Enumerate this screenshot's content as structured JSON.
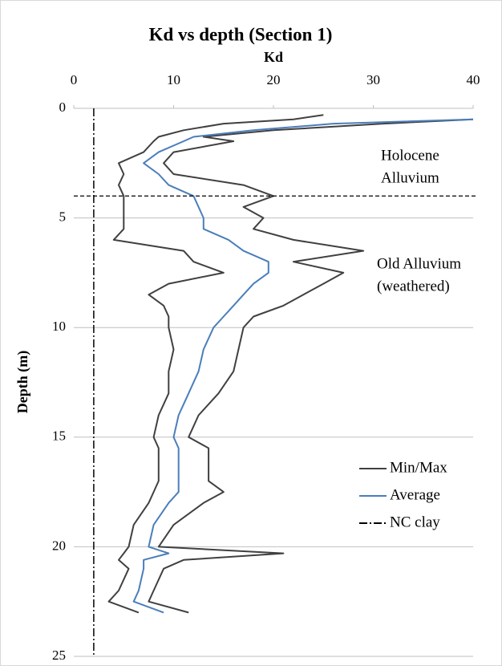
{
  "chart_data": {
    "type": "line",
    "title": "Kd vs depth (Section 1)",
    "x_label": "Kd",
    "y_label": "Depth (m)",
    "xlim": [
      0,
      40
    ],
    "xticks": [
      0,
      10,
      20,
      30,
      40
    ],
    "ylim": [
      0,
      25
    ],
    "yticks": [
      0,
      5,
      10,
      15,
      20,
      25
    ],
    "y_inverted": true,
    "grid": true,
    "legend": "lower right",
    "depth": [
      0.3,
      0.5,
      0.7,
      1,
      1.3,
      1.5,
      2,
      2.5,
      3,
      3.5,
      4,
      4.5,
      5,
      5.5,
      6,
      6.5,
      7,
      7.5,
      8,
      8.5,
      9,
      9.5,
      10,
      11,
      12,
      13,
      14,
      15,
      15.5,
      16,
      17,
      17.5,
      18,
      19,
      20,
      20.3,
      20.6,
      21,
      22,
      22.5,
      23
    ],
    "series": [
      {
        "name": "Min/Max",
        "color": "#404040",
        "min": [
          25,
          22,
          15,
          11,
          8.5,
          8,
          7,
          4.5,
          5,
          4.5,
          5,
          5,
          5,
          5,
          4,
          11,
          12,
          15,
          9.5,
          7.5,
          9,
          9.5,
          9.5,
          10,
          9.5,
          9.5,
          8.5,
          8,
          8.5,
          8.5,
          8.5,
          8,
          7.5,
          6,
          5.5,
          5,
          4.5,
          5.5,
          4.5,
          3.5,
          6.5
        ],
        "max": [
          null,
          40,
          31,
          20,
          13,
          16,
          10,
          9,
          10,
          17,
          20,
          17,
          19,
          18,
          22,
          29,
          22,
          27,
          25,
          23,
          21,
          18,
          17,
          16.5,
          16,
          14.5,
          12.5,
          11.5,
          13.5,
          13.5,
          13.5,
          15,
          13,
          10,
          8.5,
          21,
          11,
          9,
          8,
          7.5,
          11.5
        ]
      },
      {
        "name": "Average",
        "color": "#4a7ebb",
        "values": [
          null,
          40,
          26,
          18,
          12,
          11,
          8.5,
          7,
          8.5,
          9.5,
          12,
          12.5,
          13,
          13,
          15.5,
          17,
          19.5,
          19.5,
          18,
          17,
          16,
          15,
          14,
          13,
          12.5,
          11.5,
          10.5,
          10,
          10.5,
          10.5,
          10.5,
          10.5,
          9.5,
          8,
          7.5,
          9.5,
          7,
          7,
          6.5,
          6,
          9
        ]
      }
    ],
    "reference_lines": [
      {
        "name": "NC clay",
        "x": 2,
        "color": "#000000"
      }
    ],
    "boundary_depth": 4,
    "annotations": [
      {
        "lines": [
          "Holocene",
          "Alluvium"
        ]
      },
      {
        "lines": [
          "Old Alluvium",
          "(weathered)"
        ]
      }
    ]
  }
}
